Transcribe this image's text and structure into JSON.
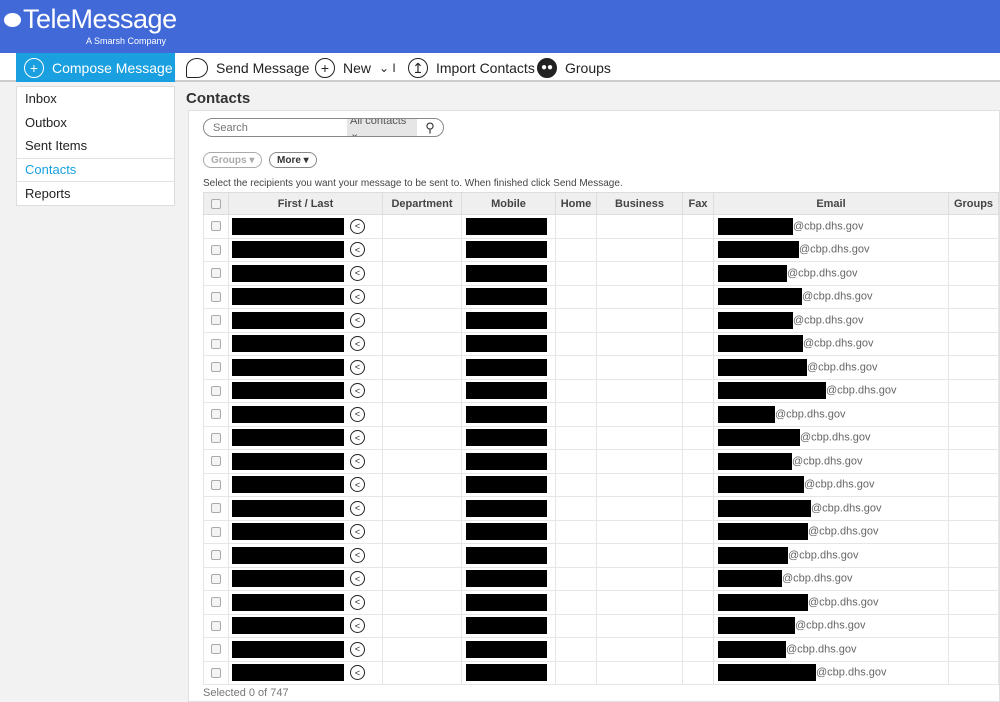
{
  "brand": {
    "name": "TeleMessage",
    "tagline": "A Smarsh Company"
  },
  "nav": {
    "compose": "Compose Message",
    "send": "Send Message",
    "new": "New",
    "new_caret": "⌄ I",
    "import": "Import Contacts",
    "groups": "Groups"
  },
  "sidebar": {
    "items": [
      {
        "label": "Inbox"
      },
      {
        "label": "Outbox"
      },
      {
        "label": "Sent Items"
      },
      {
        "label": "Contacts"
      },
      {
        "label": "Reports"
      }
    ]
  },
  "main": {
    "title": "Contacts",
    "search": {
      "placeholder": "Search",
      "scope": "All contacts ⌄"
    },
    "groups_filter": "Groups ▾",
    "more_button": "More ▾",
    "instructions": "Select the recipients you want your message to be sent to. When finished click Send Message.",
    "columns": [
      "First / Last",
      "Department",
      "Mobile",
      "Home",
      "Business",
      "Fax",
      "Email",
      "Groups"
    ],
    "rows": [
      {
        "email": "@cbp.dhs.gov"
      },
      {
        "email": "@cbp.dhs.gov"
      },
      {
        "email": "@cbp.dhs.gov"
      },
      {
        "email": "@cbp.dhs.gov"
      },
      {
        "email": "@cbp.dhs.gov"
      },
      {
        "email": "@cbp.dhs.gov"
      },
      {
        "email": "@cbp.dhs.gov"
      },
      {
        "email": "@cbp.dhs.gov"
      },
      {
        "email": "@cbp.dhs.gov"
      },
      {
        "email": "@cbp.dhs.gov"
      },
      {
        "email": "@cbp.dhs.gov"
      },
      {
        "email": "@cbp.dhs.gov"
      },
      {
        "email": "@cbp.dhs.gov"
      },
      {
        "email": "@cbp.dhs.gov"
      },
      {
        "email": "@cbp.dhs.gov"
      },
      {
        "email": "@cbp.dhs.gov"
      },
      {
        "email": "@cbp.dhs.gov"
      },
      {
        "email": "@cbp.dhs.gov"
      },
      {
        "email": "@cbp.dhs.gov"
      },
      {
        "email": "@cbp.dhs.gov"
      }
    ],
    "footer": "Selected 0 of 747"
  },
  "colors": {
    "header": "#4169d8",
    "accent": "#1aa0e0"
  }
}
